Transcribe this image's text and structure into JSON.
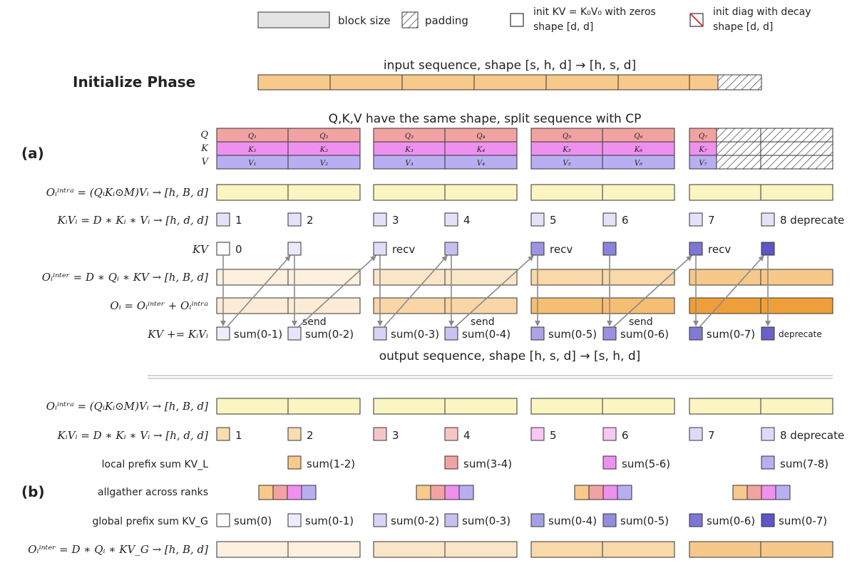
{
  "legend": {
    "block_size": "block size",
    "padding": "padding",
    "init_kv_line1": "init KV = K₀V₀ with zeros",
    "init_kv_line2": "shape [d, d]",
    "init_diag_line1": "init diag with decay",
    "init_diag_line2": "shape [d, d]"
  },
  "phase_title": "Initialize Phase",
  "input_sequence_label": "input sequence, shape [s, h, d] → [h, s, d]",
  "qkv_caption": "Q,K,V have the same shape, split sequence with CP",
  "output_sequence_label": "output sequence, shape [h, s, d] → [s, h, d]",
  "panel_a": {
    "tag": "(a)",
    "row_labels": {
      "q": "Q",
      "k": "K",
      "v": "V",
      "o_intra": "Oᵢⁱⁿᵗʳᵃ = (QᵢKᵢ⊙M)Vᵢ → [h, B, d]",
      "kv_i": "KᵢVᵢ = D ∗ Kᵢ ∗ Vᵢ → [h, d, d]",
      "kv": "KV",
      "o_inter": "Oᵢⁱⁿᵗᵉʳ = D ∗ Qᵢ ∗ KV → [h, B, d]",
      "o_sum": "Oᵢ = Oᵢⁱⁿᵗᵉʳ + Oᵢⁱⁿᵗʳᵃ",
      "kv_update": "KV += KᵢVᵢ"
    },
    "q_cells": [
      "Q₁",
      "Q₂",
      "Q₃",
      "Q₄",
      "Q₅",
      "Q₆",
      "Q₇"
    ],
    "k_cells": [
      "K₁",
      "K₂",
      "K₃",
      "K₄",
      "K₅",
      "K₆",
      "K₇"
    ],
    "v_cells": [
      "V₁",
      "V₂",
      "V₃",
      "V₄",
      "V₅",
      "V₆",
      "V₇"
    ],
    "kv_i_labels": [
      "1",
      "2",
      "3",
      "4",
      "5",
      "6",
      "7",
      "8 deprecate"
    ],
    "kv_labels": [
      "0",
      "recv",
      "recv",
      "recv"
    ],
    "send_labels": [
      "send",
      "send",
      "send"
    ],
    "sum_labels": [
      "sum(0-1)",
      "sum(0-2)",
      "sum(0-3)",
      "sum(0-4)",
      "sum(0-5)",
      "sum(0-6)",
      "sum(0-7)",
      "deprecate"
    ]
  },
  "panel_b": {
    "tag": "(b)",
    "row_labels": {
      "o_intra": "Oᵢⁱⁿᵗʳᵃ = (QᵢKᵢ⊙M)Vᵢ → [h, B, d]",
      "kv_i": "KᵢVᵢ = D ∗ Kᵢ ∗ Vᵢ → [h, d, d]",
      "local_prefix": "local prefix sum KV_L",
      "allgather": "allgather across ranks",
      "global_prefix": "global prefix sum KV_G",
      "o_inter": "Oᵢⁱⁿᵗᵉʳ = D ∗ Qᵢ ∗ KV_G → [h, B, d]"
    },
    "kv_i_labels": [
      "1",
      "2",
      "3",
      "4",
      "5",
      "6",
      "7",
      "8 deprecate"
    ],
    "local_prefix_labels": [
      "sum(1-2)",
      "sum(3-4)",
      "sum(5-6)",
      "sum(7-8)"
    ],
    "global_prefix_labels": [
      "sum(0)",
      "sum(0-1)",
      "sum(0-2)",
      "sum(0-3)",
      "sum(0-4)",
      "sum(0-5)",
      "sum(0-6)",
      "sum(0-7)"
    ]
  },
  "colors": {
    "orange": "#f7c98b",
    "q": "#f2a2a2",
    "k": "#ee90ee",
    "v": "#b8aef2",
    "intra": "#fbf5c2",
    "stroke": "#333333",
    "arrow": "#8a8a8a"
  }
}
